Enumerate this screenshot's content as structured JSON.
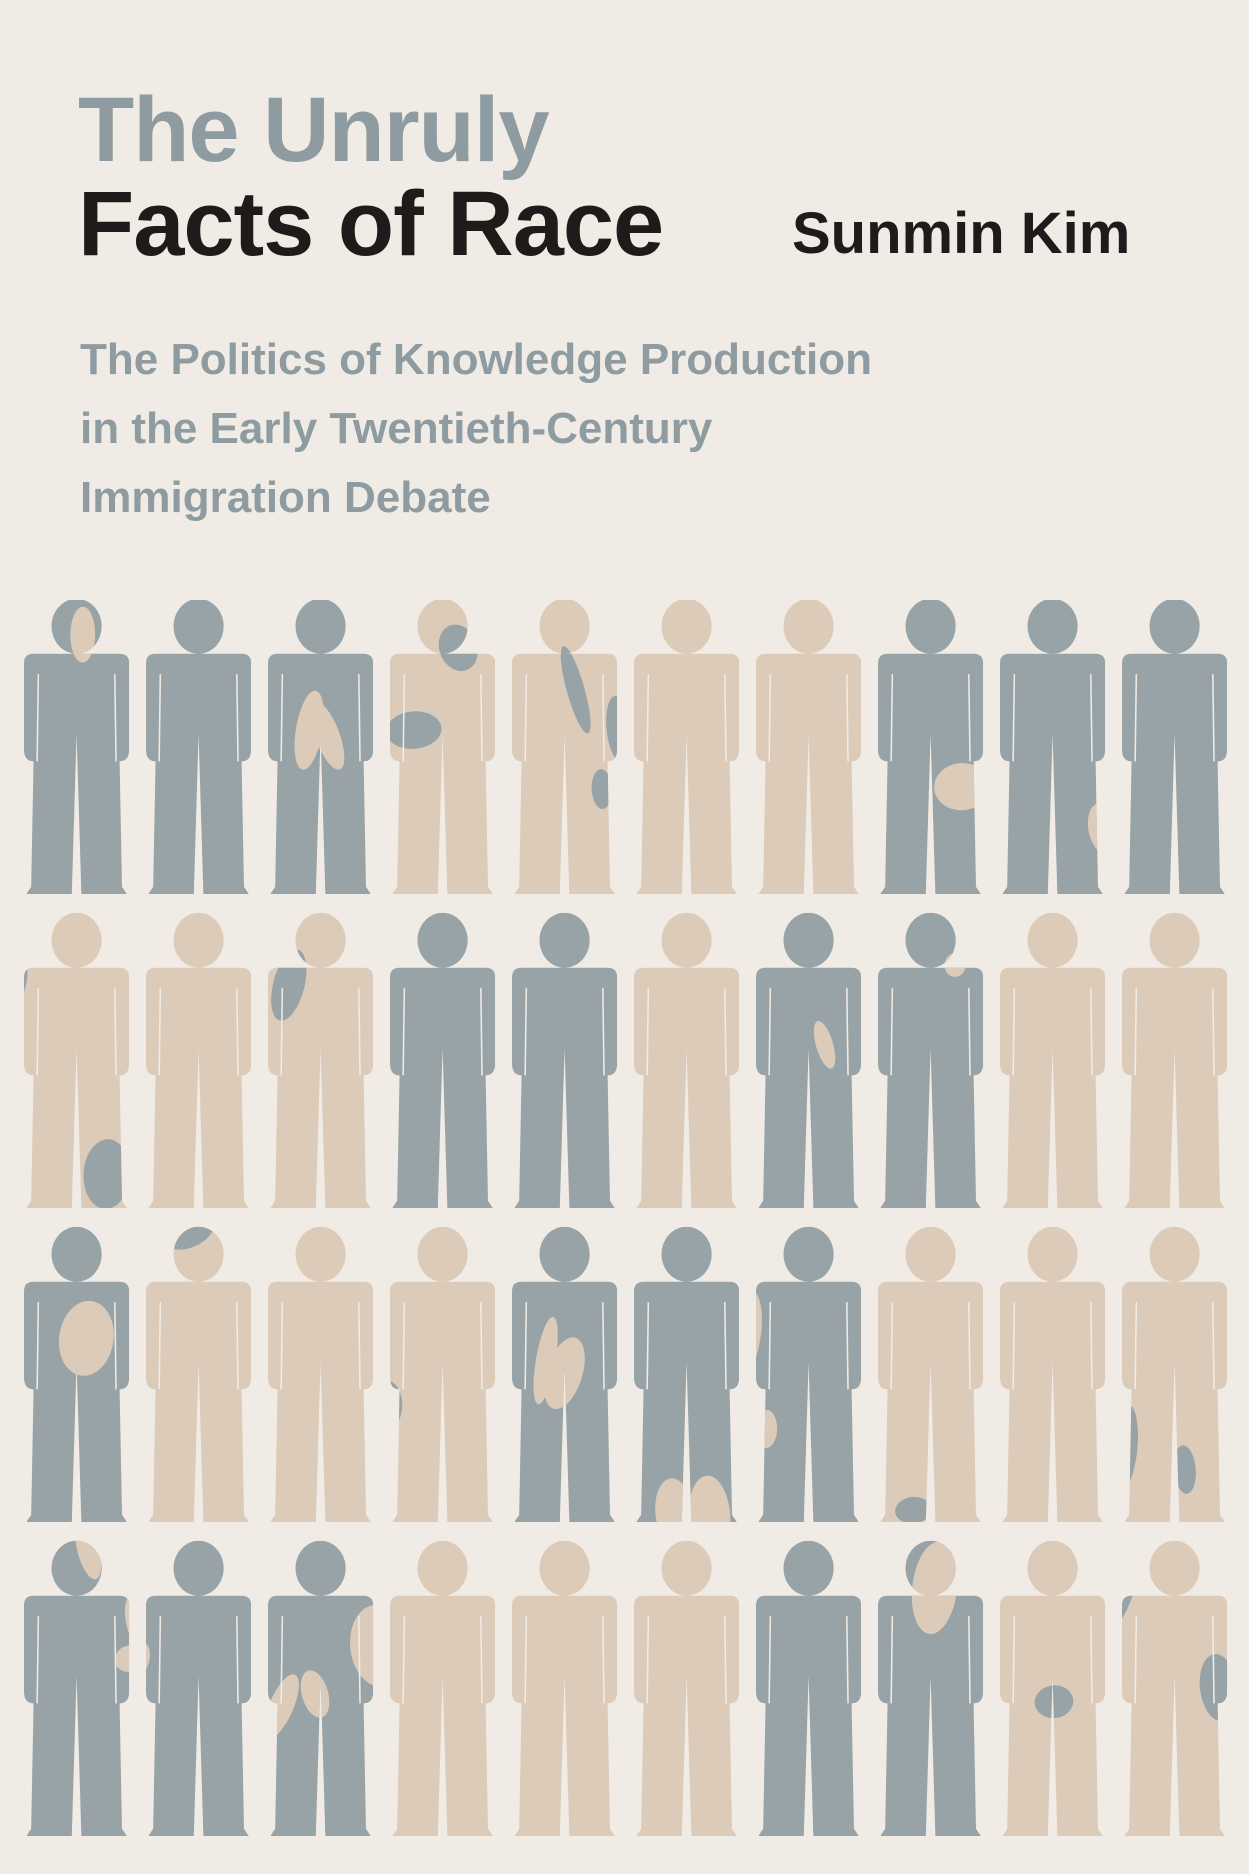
{
  "cover": {
    "title_line1": "The Unruly",
    "title_line2": "Facts of Race",
    "author": "Sunmin Kim",
    "subtitle_lines": [
      "The Politics of Knowledge Production",
      "in the Early Twentieth-Century",
      "Immigration Debate"
    ]
  },
  "colors": {
    "background": "#f0ece5",
    "gray": "#97a3a7",
    "tan": "#dccbb9",
    "title_gray": "#8e9ca1",
    "title_dark": "#1e1b1a"
  },
  "figures": {
    "rows": [
      [
        "gray",
        "gray",
        "gray",
        "tan",
        "tan",
        "tan",
        "tan",
        "gray",
        "gray",
        "gray"
      ],
      [
        "tan",
        "tan",
        "tan",
        "gray",
        "gray",
        "tan",
        "gray",
        "gray",
        "tan",
        "tan"
      ],
      [
        "gray",
        "tan",
        "tan",
        "tan",
        "gray",
        "gray",
        "gray",
        "tan",
        "tan",
        "tan"
      ],
      [
        "gray",
        "gray",
        "gray",
        "tan",
        "tan",
        "tan",
        "gray",
        "gray",
        "tan",
        "tan"
      ]
    ]
  }
}
